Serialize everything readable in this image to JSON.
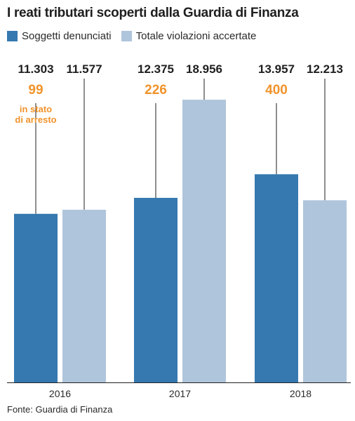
{
  "chart_data": {
    "type": "bar",
    "title": "I reati tributari scoperti dalla Guardia di Finanza",
    "categories": [
      "2016",
      "2017",
      "2018"
    ],
    "series": [
      {
        "name": "Soggetti denunciati",
        "color": "#3579b0",
        "values": [
          11303,
          12375,
          13957
        ],
        "value_labels": [
          "11.303",
          "12.375",
          "13.957"
        ]
      },
      {
        "name": "Totale violazioni accertate",
        "color": "#afc5dc",
        "values": [
          11577,
          18956,
          12213
        ],
        "value_labels": [
          "11.577",
          "18.956",
          "12.213"
        ]
      }
    ],
    "arrests": {
      "color": "#f0932b",
      "values": [
        99,
        226,
        400
      ],
      "note": "in stato di arresto",
      "note_lines": [
        "in stato",
        "di arresto"
      ]
    },
    "ylim": [
      0,
      21500
    ],
    "legend_position": "top-left",
    "grid": false
  },
  "source": "Fonte: Guardia di Finanza"
}
